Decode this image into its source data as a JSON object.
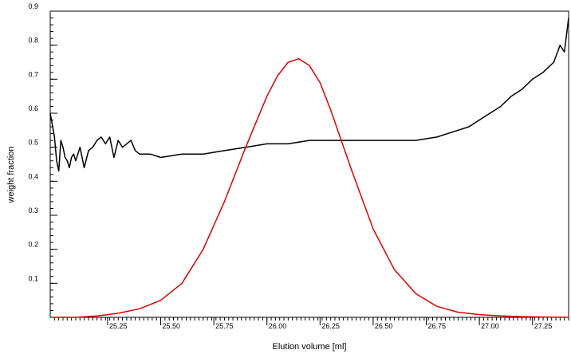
{
  "chart_data": {
    "type": "line",
    "title": "",
    "xlabel": "Elution volume [ml]",
    "ylabel": "weight fraction",
    "xlim": [
      24.98,
      27.42
    ],
    "ylim": [
      0.0,
      0.9
    ],
    "x_ticks": [
      "25.25",
      "25.50",
      "25.75",
      "26.00",
      "26.25",
      "26.50",
      "26.75",
      "27.00",
      "27.25"
    ],
    "x_tick_values": [
      25.25,
      25.5,
      25.75,
      26.0,
      26.25,
      26.5,
      26.75,
      27.0,
      27.25
    ],
    "y_ticks": [
      "0.1",
      "0.2",
      "0.3",
      "0.4",
      "0.5",
      "0.6",
      "0.7",
      "0.8",
      "0.9"
    ],
    "y_tick_values": [
      0.1,
      0.2,
      0.3,
      0.4,
      0.5,
      0.6,
      0.7,
      0.8,
      0.9
    ],
    "grid": false,
    "legend": "none",
    "series": [
      {
        "color": "#000000",
        "x": [
          24.98,
          25.0,
          25.01,
          25.02,
          25.03,
          25.04,
          25.05,
          25.06,
          25.07,
          25.08,
          25.09,
          25.1,
          25.12,
          25.14,
          25.16,
          25.18,
          25.2,
          25.22,
          25.24,
          25.26,
          25.28,
          25.3,
          25.32,
          25.34,
          25.36,
          25.38,
          25.4,
          25.42,
          25.45,
          25.5,
          25.6,
          25.7,
          25.8,
          25.9,
          26.0,
          26.1,
          26.2,
          26.3,
          26.4,
          26.5,
          26.6,
          26.7,
          26.8,
          26.9,
          26.95,
          27.0,
          27.05,
          27.1,
          27.15,
          27.2,
          27.25,
          27.3,
          27.35,
          27.38,
          27.4,
          27.42
        ],
        "y": [
          0.6,
          0.53,
          0.46,
          0.43,
          0.52,
          0.5,
          0.47,
          0.46,
          0.44,
          0.47,
          0.48,
          0.46,
          0.5,
          0.44,
          0.49,
          0.5,
          0.52,
          0.53,
          0.51,
          0.53,
          0.47,
          0.52,
          0.5,
          0.51,
          0.52,
          0.49,
          0.48,
          0.48,
          0.48,
          0.47,
          0.48,
          0.48,
          0.49,
          0.5,
          0.51,
          0.51,
          0.52,
          0.52,
          0.52,
          0.52,
          0.52,
          0.52,
          0.53,
          0.55,
          0.56,
          0.58,
          0.6,
          0.62,
          0.65,
          0.67,
          0.7,
          0.72,
          0.75,
          0.8,
          0.78,
          0.88
        ]
      },
      {
        "color": "#e00000",
        "x": [
          24.98,
          25.1,
          25.2,
          25.3,
          25.4,
          25.5,
          25.6,
          25.7,
          25.8,
          25.9,
          26.0,
          26.05,
          26.1,
          26.15,
          26.2,
          26.25,
          26.3,
          26.4,
          26.5,
          26.6,
          26.7,
          26.8,
          26.9,
          27.0,
          27.1,
          27.2,
          27.3,
          27.42
        ],
        "y": [
          0.0,
          0.0,
          0.004,
          0.012,
          0.025,
          0.05,
          0.1,
          0.2,
          0.34,
          0.5,
          0.65,
          0.71,
          0.75,
          0.76,
          0.74,
          0.69,
          0.61,
          0.43,
          0.26,
          0.14,
          0.07,
          0.032,
          0.015,
          0.008,
          0.004,
          0.002,
          0.001,
          0.0
        ]
      }
    ]
  }
}
